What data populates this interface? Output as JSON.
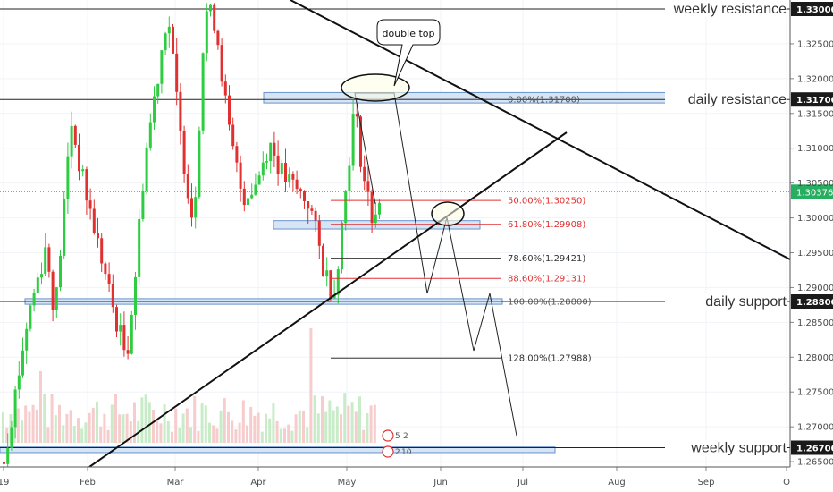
{
  "chart_data": {
    "type": "candlestick",
    "title": "",
    "y_range": [
      1.262,
      1.334
    ],
    "x_ticks": [
      "19",
      "Feb",
      "Mar",
      "Apr",
      "May",
      "Jun",
      "Jul",
      "Aug",
      "Sep",
      "O"
    ],
    "y_ticks": [
      "1.32500",
      "1.32000",
      "1.31500",
      "1.31000",
      "1.30500",
      "1.30000",
      "1.29500",
      "1.29000",
      "1.28500",
      "1.28000",
      "1.27500",
      "1.27000",
      "1.26500"
    ],
    "current_price": "1.30376",
    "current_price_value": 1.30376,
    "colors": {
      "up": "#2ecc40",
      "down": "#e03030",
      "volume_up": "#c8ecc8",
      "volume_down": "#f6cccc",
      "zone_fill": "#cfe0f5",
      "zone_stroke": "#6a93c9",
      "fib": "#e03030",
      "current": "#27ae60"
    },
    "levels": [
      {
        "label": "weekly resistance",
        "price_label": "1.33000",
        "value": 1.33
      },
      {
        "label": "daily resistance",
        "price_label": "1.31700",
        "value": 1.317
      },
      {
        "label": "daily support",
        "price_label": "1.28800",
        "value": 1.288
      },
      {
        "label": "weekly support",
        "price_label": "1.26700",
        "value": 1.267
      }
    ],
    "fibonacci": [
      {
        "label": "0.00%(1.31700)",
        "value": 1.317,
        "color": "#555555"
      },
      {
        "label": "50.00%(1.30250)",
        "value": 1.3025,
        "color": "#e03030"
      },
      {
        "label": "61.80%(1.29908)",
        "value": 1.29908,
        "color": "#e03030"
      },
      {
        "label": "78.60%(1.29421)",
        "value": 1.29421,
        "color": "#333333"
      },
      {
        "label": "88.60%(1.29131)",
        "value": 1.29131,
        "color": "#e03030"
      },
      {
        "label": "100.00%(1.28800)",
        "value": 1.288,
        "color": "#555555"
      },
      {
        "label": "128.00%(1.27988)",
        "value": 1.27988,
        "color": "#333333"
      }
    ],
    "annotations": [
      {
        "text": "double top"
      }
    ],
    "event_badges": [
      "5",
      "2",
      "2",
      "10"
    ]
  }
}
